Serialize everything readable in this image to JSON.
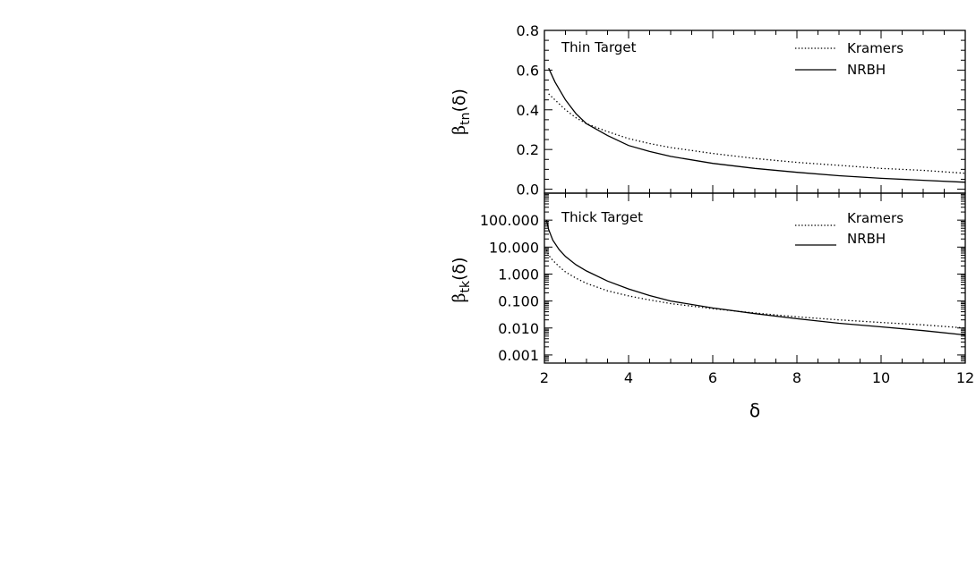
{
  "chart_data": [
    {
      "type": "line",
      "panel": "top",
      "title": "",
      "annotation": "Thin Target",
      "ylabel_main": "β",
      "ylabel_sub": "tn",
      "ylabel_tail": "(δ)",
      "xlabel": "",
      "xlim": [
        2,
        12
      ],
      "ylim": [
        -0.02,
        0.8
      ],
      "y_ticks": [
        0.0,
        0.2,
        0.4,
        0.6,
        0.8
      ],
      "y_tick_labels": [
        "0.0",
        "0.2",
        "0.4",
        "0.6",
        "0.8"
      ],
      "yscale": "linear",
      "legend_position": "top-right",
      "x": [
        2.1,
        2.25,
        2.5,
        2.75,
        3,
        3.5,
        4,
        4.5,
        5,
        6,
        7,
        8,
        9,
        10,
        11,
        12
      ],
      "series": [
        {
          "name": "Kramers",
          "style": "dotted",
          "values": [
            0.48,
            0.45,
            0.4,
            0.36,
            0.33,
            0.29,
            0.255,
            0.23,
            0.21,
            0.18,
            0.155,
            0.135,
            0.12,
            0.105,
            0.095,
            0.08
          ]
        },
        {
          "name": "NRBH",
          "style": "solid",
          "values": [
            0.61,
            0.54,
            0.45,
            0.38,
            0.33,
            0.27,
            0.22,
            0.19,
            0.165,
            0.13,
            0.105,
            0.085,
            0.068,
            0.055,
            0.045,
            0.035
          ]
        }
      ]
    },
    {
      "type": "line",
      "panel": "bottom",
      "title": "",
      "annotation": "Thick Target",
      "ylabel_main": "β",
      "ylabel_sub": "tk",
      "ylabel_tail": "(δ)",
      "xlabel": "δ",
      "xlim": [
        2,
        12
      ],
      "x_ticks": [
        2,
        4,
        6,
        8,
        10,
        12
      ],
      "x_tick_labels": [
        "2",
        "4",
        "6",
        "8",
        "10",
        "12"
      ],
      "ylim": [
        0.0005,
        1000
      ],
      "y_ticks": [
        0.001,
        0.01,
        0.1,
        1,
        10,
        100
      ],
      "y_tick_labels": [
        "0.001",
        "0.010",
        "0.100",
        "1.000",
        "10.000",
        "100.000"
      ],
      "yscale": "log",
      "legend_position": "top-right",
      "x": [
        2.05,
        2.1,
        2.2,
        2.35,
        2.5,
        2.75,
        3,
        3.5,
        4,
        4.5,
        5,
        6,
        7,
        8,
        9,
        10,
        11,
        12
      ],
      "series": [
        {
          "name": "Kramers",
          "style": "dotted",
          "values": [
            8,
            5,
            3.2,
            1.9,
            1.2,
            0.7,
            0.45,
            0.24,
            0.155,
            0.11,
            0.08,
            0.052,
            0.036,
            0.026,
            0.02,
            0.016,
            0.013,
            0.01
          ]
        },
        {
          "name": "NRBH",
          "style": "solid",
          "values": [
            100,
            45,
            18,
            8,
            4.5,
            2.2,
            1.3,
            0.55,
            0.28,
            0.16,
            0.1,
            0.055,
            0.034,
            0.022,
            0.015,
            0.011,
            0.008,
            0.0055
          ]
        }
      ]
    }
  ]
}
